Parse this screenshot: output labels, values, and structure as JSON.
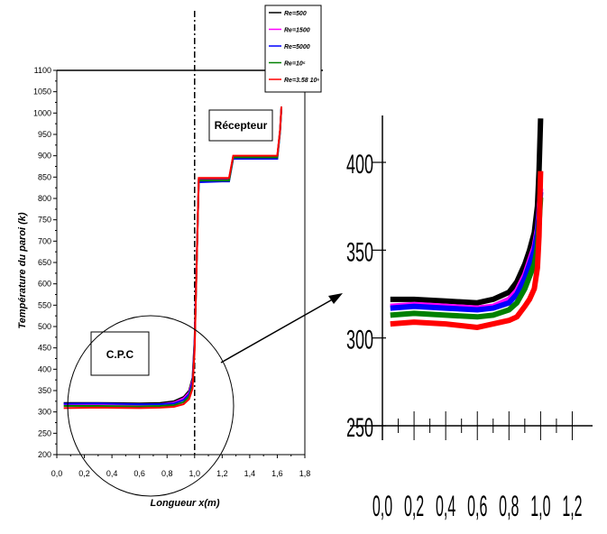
{
  "chart_data": [
    {
      "type": "line",
      "title": "",
      "xlabel": "Longueur x(m)",
      "ylabel": "Température du paroi (k)",
      "xlim": [
        0.0,
        1.8
      ],
      "ylim": [
        200,
        1100
      ],
      "xticks": [
        "0,0",
        "0,2",
        "0,4",
        "0,6",
        "0,8",
        "1,0",
        "1,2",
        "1,4",
        "1,6",
        "1,8"
      ],
      "yticks": [
        "200",
        "250",
        "300",
        "350",
        "400",
        "450",
        "500",
        "550",
        "600",
        "650",
        "700",
        "750",
        "800",
        "850",
        "900",
        "950",
        "1000",
        "1050",
        "1100"
      ],
      "grid": false,
      "legend_position": "top-right",
      "annotations": [
        "Récepteur",
        "C.P.C"
      ],
      "series": [
        {
          "name": "Re=500",
          "color": "#000000",
          "x": [
            0.05,
            0.3,
            0.6,
            0.75,
            0.85,
            0.92,
            0.96,
            0.985,
            1.0,
            1.03,
            1.2,
            1.25,
            1.28,
            1.4,
            1.6,
            1.62,
            1.63
          ],
          "y": [
            321,
            321,
            320,
            321,
            325,
            335,
            350,
            380,
            470,
            845,
            845,
            845,
            898,
            898,
            898,
            960,
            1015
          ]
        },
        {
          "name": "Re=1500",
          "color": "#ff00ff",
          "x": [
            0.05,
            0.3,
            0.6,
            0.75,
            0.85,
            0.92,
            0.96,
            0.985,
            1.0,
            1.03,
            1.2,
            1.25,
            1.28,
            1.4,
            1.6,
            1.62,
            1.63
          ],
          "y": [
            318,
            318,
            317,
            318,
            322,
            332,
            346,
            375,
            465,
            843,
            843,
            843,
            896,
            896,
            896,
            958,
            1013
          ]
        },
        {
          "name": "Re=5000",
          "color": "#0000ff",
          "x": [
            0.05,
            0.3,
            0.6,
            0.75,
            0.85,
            0.92,
            0.96,
            0.985,
            1.0,
            1.03,
            1.2,
            1.25,
            1.28,
            1.4,
            1.6,
            1.62,
            1.63
          ],
          "y": [
            319,
            320,
            318,
            318,
            320,
            328,
            342,
            370,
            460,
            838,
            840,
            840,
            893,
            893,
            893,
            955,
            1013
          ]
        },
        {
          "name": "Re=10⁵",
          "color": "#008000",
          "x": [
            0.05,
            0.3,
            0.6,
            0.75,
            0.85,
            0.92,
            0.96,
            0.985,
            1.0,
            1.03,
            1.2,
            1.25,
            1.28,
            1.4,
            1.6,
            1.62,
            1.63
          ],
          "y": [
            314,
            314,
            313,
            314,
            316,
            323,
            336,
            362,
            452,
            842,
            842,
            842,
            896,
            896,
            896,
            957,
            1013
          ]
        },
        {
          "name": "Re=3.58 10⁶",
          "color": "#ff0000",
          "x": [
            0.05,
            0.3,
            0.6,
            0.75,
            0.85,
            0.92,
            0.96,
            0.985,
            1.0,
            1.03,
            1.2,
            1.25,
            1.28,
            1.4,
            1.6,
            1.62,
            1.63
          ],
          "y": [
            309,
            310,
            309,
            310,
            312,
            318,
            330,
            355,
            445,
            848,
            848,
            848,
            900,
            900,
            900,
            960,
            1015
          ]
        }
      ]
    },
    {
      "type": "line",
      "title": "",
      "xlabel": "",
      "ylabel": "",
      "xlim": [
        0.0,
        1.3
      ],
      "ylim": [
        250,
        420
      ],
      "xticks": [
        "0,0",
        "0,2",
        "0,4",
        "0,6",
        "0,8",
        "1,0",
        "1,2"
      ],
      "yticks": [
        "250",
        "300",
        "350",
        "400"
      ],
      "grid": false,
      "series": [
        {
          "color": "#000000",
          "x": [
            0.05,
            0.2,
            0.4,
            0.6,
            0.7,
            0.8,
            0.85,
            0.9,
            0.93,
            0.96,
            0.98,
            0.99,
            1.0
          ],
          "y": [
            322,
            322,
            321,
            320,
            322,
            326,
            332,
            342,
            350,
            360,
            375,
            395,
            425
          ]
        },
        {
          "color": "#ff00ff",
          "x": [
            0.05,
            0.2,
            0.4,
            0.6,
            0.7,
            0.8,
            0.85,
            0.9,
            0.93,
            0.96,
            0.98,
            0.99,
            1.0
          ],
          "y": [
            318,
            319,
            318,
            317,
            318,
            322,
            327,
            336,
            344,
            352,
            362,
            372,
            385
          ]
        },
        {
          "color": "#0000ff",
          "x": [
            0.05,
            0.2,
            0.4,
            0.6,
            0.7,
            0.8,
            0.85,
            0.9,
            0.93,
            0.96,
            0.98,
            0.99,
            1.0
          ],
          "y": [
            317,
            318,
            317,
            316,
            317,
            320,
            325,
            334,
            342,
            350,
            360,
            370,
            383
          ]
        },
        {
          "color": "#008000",
          "x": [
            0.05,
            0.2,
            0.4,
            0.6,
            0.7,
            0.8,
            0.85,
            0.9,
            0.93,
            0.96,
            0.98,
            0.99,
            1.0
          ],
          "y": [
            313,
            314,
            313,
            312,
            313,
            316,
            320,
            328,
            335,
            342,
            352,
            365,
            380
          ]
        },
        {
          "color": "#ff0000",
          "x": [
            0.05,
            0.2,
            0.4,
            0.6,
            0.7,
            0.8,
            0.85,
            0.9,
            0.93,
            0.96,
            0.98,
            0.99,
            1.0
          ],
          "y": [
            308,
            309,
            308,
            306,
            308,
            310,
            312,
            318,
            322,
            328,
            340,
            358,
            395
          ]
        }
      ]
    }
  ]
}
